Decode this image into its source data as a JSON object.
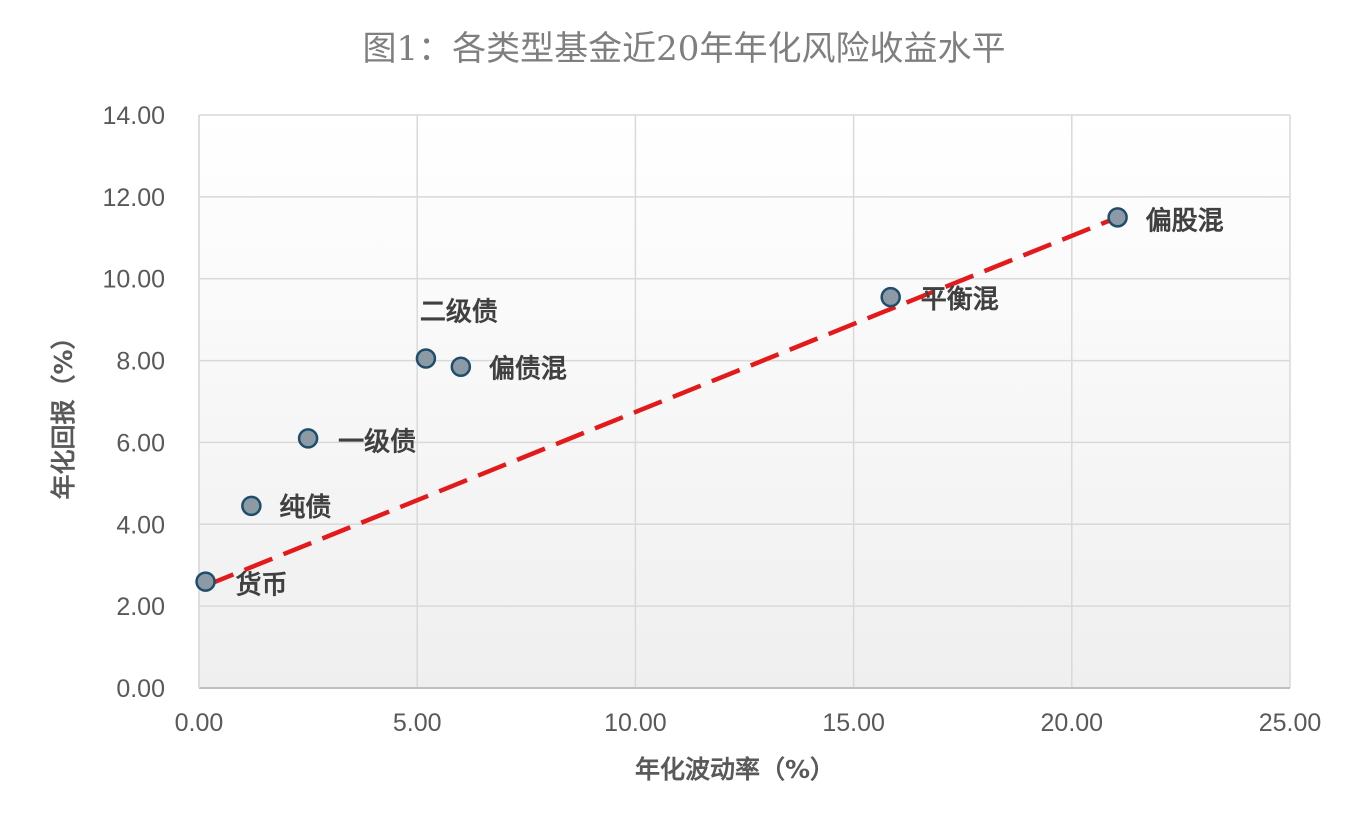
{
  "chart_data": {
    "type": "scatter",
    "title": "图1：各类型基金近20年年化风险收益水平",
    "xlabel": "年化波动率（%）",
    "ylabel": "年化回报（%）",
    "xlim": [
      0,
      25
    ],
    "ylim": [
      0,
      14
    ],
    "x_ticks": [
      "0.00",
      "5.00",
      "10.00",
      "15.00",
      "20.00",
      "25.00"
    ],
    "y_ticks": [
      "0.00",
      "2.00",
      "4.00",
      "6.00",
      "8.00",
      "10.00",
      "12.00",
      "14.00"
    ],
    "grid": true,
    "points": [
      {
        "label": "货币",
        "x": 0.15,
        "y": 2.6
      },
      {
        "label": "纯债",
        "x": 1.2,
        "y": 4.45
      },
      {
        "label": "一级债",
        "x": 2.5,
        "y": 6.1
      },
      {
        "label": "二级债",
        "x": 5.2,
        "y": 8.05
      },
      {
        "label": "偏债混",
        "x": 6.0,
        "y": 7.85
      },
      {
        "label": "平衡混",
        "x": 15.85,
        "y": 9.55
      },
      {
        "label": "偏股混",
        "x": 21.05,
        "y": 11.5
      }
    ],
    "trendline": {
      "x": [
        0.15,
        21.05
      ],
      "y": [
        2.5,
        11.5
      ],
      "color": "#e31a1c",
      "style": "dashed"
    },
    "colors": {
      "marker_fill": "#8c9aa6",
      "marker_stroke": "#1f4e6b",
      "plot_bg": "#f2f2f2"
    }
  }
}
